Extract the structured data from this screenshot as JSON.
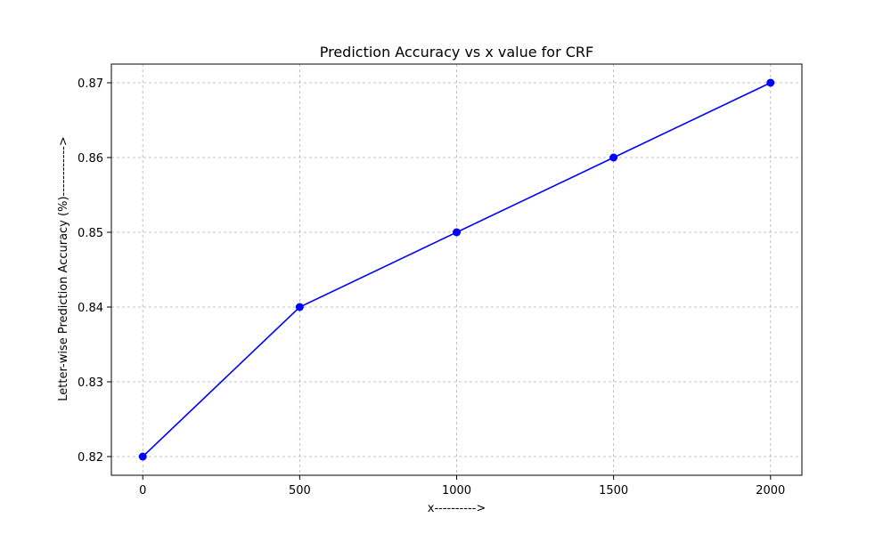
{
  "chart_data": {
    "type": "line",
    "title": "Prediction Accuracy vs x value for CRF",
    "xlabel": "x---------->",
    "ylabel": "Letter-wise Prediction Accuracy (%)------------>",
    "x": [
      0,
      500,
      1000,
      1500,
      2000
    ],
    "series": [
      {
        "values": [
          0.82,
          0.84,
          0.85,
          0.86,
          0.87
        ],
        "color": "#0000ff",
        "marker": "circle"
      }
    ],
    "xticks": [
      0,
      500,
      1000,
      1500,
      2000
    ],
    "xtick_labels": [
      "0",
      "500",
      "1000",
      "1500",
      "2000"
    ],
    "yticks": [
      0.82,
      0.83,
      0.84,
      0.85,
      0.86,
      0.87
    ],
    "ytick_labels": [
      "0.82",
      "0.83",
      "0.84",
      "0.85",
      "0.86",
      "0.87"
    ],
    "xlim": [
      -100,
      2100
    ],
    "ylim": [
      0.8175,
      0.8725
    ],
    "grid": true,
    "grid_style": "dashed",
    "grid_color": "#b0b0b0",
    "legend": false
  }
}
